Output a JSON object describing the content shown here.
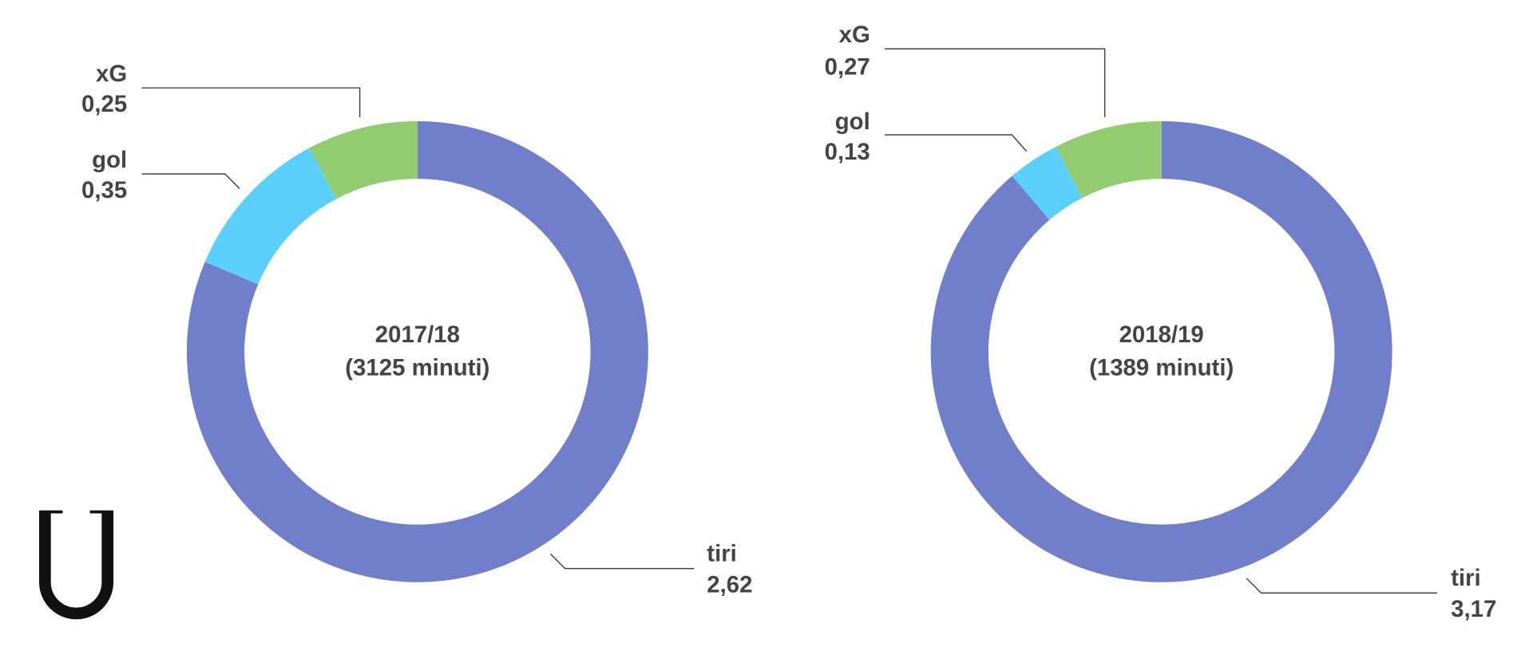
{
  "chart_data": [
    {
      "type": "pie",
      "title": "2017/18",
      "subtitle": "(3125 minuti)",
      "labels": [
        "tiri",
        "gol",
        "xG"
      ],
      "values": [
        2.62,
        0.35,
        0.25
      ],
      "value_labels": [
        "2,62",
        "0,35",
        "0,25"
      ],
      "colors": [
        "#717fcb",
        "#5bcffb",
        "#93cc70"
      ]
    },
    {
      "type": "pie",
      "title": "2018/19",
      "subtitle": "(1389 minuti)",
      "labels": [
        "tiri",
        "gol",
        "xG"
      ],
      "values": [
        3.17,
        0.13,
        0.27
      ],
      "value_labels": [
        "3,17",
        "0,13",
        "0,27"
      ],
      "colors": [
        "#717fcb",
        "#5bcffb",
        "#93cc70"
      ]
    }
  ]
}
